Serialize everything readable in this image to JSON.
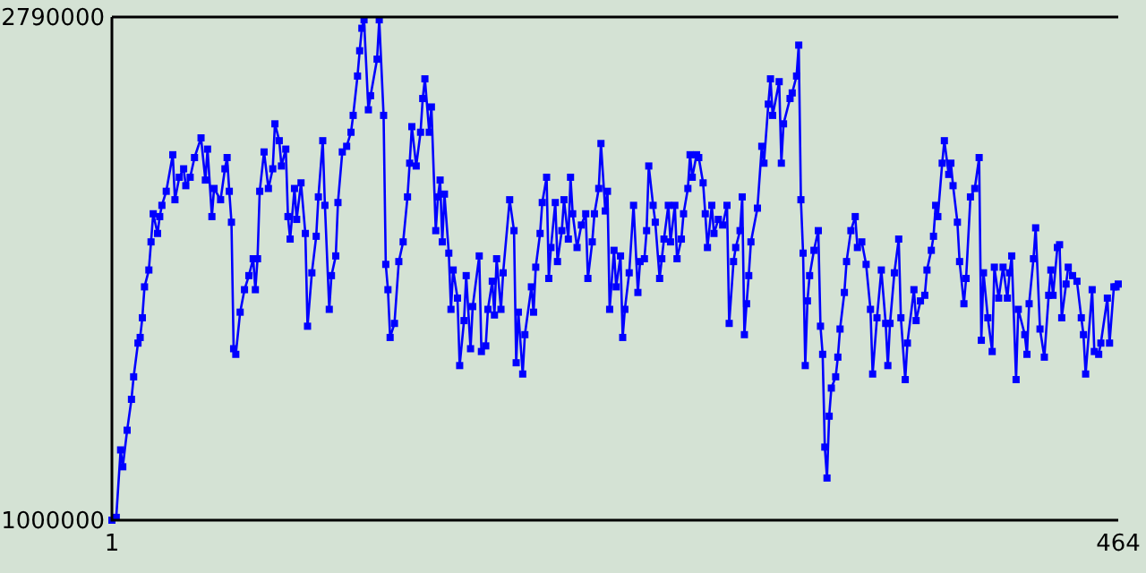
{
  "chart_data": {
    "type": "line",
    "marker": "square",
    "line_style": "solid",
    "xlim": [
      1,
      464
    ],
    "ylim": [
      1000000,
      2790000
    ],
    "xticks": [
      1,
      464
    ],
    "yticks": [
      1000000,
      2790000
    ],
    "x": [
      1,
      3,
      5,
      6,
      8,
      10,
      11,
      13,
      14,
      15,
      16,
      18,
      19,
      20,
      22,
      23,
      24,
      26,
      29,
      30,
      32,
      34,
      35,
      37,
      39,
      42,
      44,
      45,
      47,
      48,
      51,
      53,
      54,
      55,
      56,
      57,
      58,
      60,
      62,
      64,
      66,
      67,
      68,
      69,
      71,
      73,
      75,
      76,
      78,
      79,
      81,
      82,
      83,
      85,
      86,
      88,
      90,
      91,
      93,
      95,
      96,
      98,
      99,
      101,
      102,
      104,
      105,
      107,
      109,
      111,
      112,
      114,
      115,
      116,
      117,
      119,
      120,
      123,
      124,
      126,
      127,
      128,
      129,
      131,
      133,
      135,
      137,
      138,
      139,
      141,
      143,
      144,
      145,
      147,
      148,
      150,
      151,
      152,
      153,
      154,
      156,
      157,
      158,
      160,
      161,
      163,
      164,
      166,
      167,
      170,
      171,
      173,
      174,
      176,
      177,
      178,
      180,
      181,
      184,
      186,
      187,
      188,
      190,
      191,
      194,
      195,
      196,
      198,
      199,
      201,
      202,
      203,
      205,
      206,
      208,
      209,
      211,
      212,
      213,
      215,
      217,
      219,
      220,
      222,
      223,
      225,
      226,
      228,
      229,
      230,
      232,
      233,
      235,
      236,
      237,
      239,
      241,
      243,
      244,
      246,
      247,
      248,
      250,
      251,
      253,
      254,
      255,
      257,
      258,
      260,
      261,
      263,
      264,
      266,
      267,
      268,
      270,
      271,
      273,
      274,
      275,
      277,
      278,
      280,
      282,
      284,
      285,
      287,
      288,
      290,
      291,
      292,
      293,
      294,
      295,
      298,
      300,
      301,
      303,
      304,
      305,
      308,
      309,
      310,
      313,
      314,
      316,
      317,
      318,
      319,
      320,
      321,
      322,
      324,
      326,
      327,
      328,
      329,
      330,
      331,
      332,
      334,
      335,
      336,
      338,
      339,
      341,
      343,
      344,
      346,
      348,
      350,
      351,
      353,
      355,
      357,
      358,
      359,
      361,
      363,
      364,
      366,
      367,
      370,
      371,
      373,
      375,
      376,
      378,
      379,
      380,
      381,
      383,
      384,
      386,
      387,
      388,
      390,
      391,
      393,
      394,
      396,
      398,
      400,
      401,
      402,
      404,
      406,
      407,
      409,
      411,
      413,
      414,
      415,
      417,
      418,
      421,
      422,
      423,
      425,
      426,
      428,
      430,
      432,
      433,
      434,
      436,
      437,
      438,
      440,
      441,
      443,
      445,
      447,
      448,
      449,
      452,
      453,
      455,
      456,
      459,
      460,
      462,
      463,
      464
    ],
    "series": [
      {
        "color": "#0000ff",
        "values": [
          1000000,
          1010000,
          1250000,
          1190000,
          1320000,
          1430000,
          1510000,
          1630000,
          1650000,
          1720000,
          1830000,
          1890000,
          1990000,
          2090000,
          2020000,
          2080000,
          2120000,
          2170000,
          2300000,
          2140000,
          2220000,
          2250000,
          2190000,
          2220000,
          2290000,
          2360000,
          2210000,
          2320000,
          2080000,
          2180000,
          2140000,
          2250000,
          2290000,
          2170000,
          2060000,
          1610000,
          1590000,
          1740000,
          1820000,
          1870000,
          1930000,
          1820000,
          1930000,
          2170000,
          2310000,
          2180000,
          2250000,
          2410000,
          2350000,
          2260000,
          2320000,
          2080000,
          2000000,
          2180000,
          2070000,
          2200000,
          2020000,
          1690000,
          1880000,
          2010000,
          2150000,
          2350000,
          2120000,
          1750000,
          1870000,
          1940000,
          2130000,
          2310000,
          2330000,
          2380000,
          2440000,
          2580000,
          2670000,
          2750000,
          2780000,
          2460000,
          2510000,
          2640000,
          2780000,
          2440000,
          1910000,
          1820000,
          1650000,
          1700000,
          1920000,
          1990000,
          2150000,
          2270000,
          2400000,
          2260000,
          2380000,
          2500000,
          2570000,
          2380000,
          2470000,
          2030000,
          2150000,
          2210000,
          1990000,
          2160000,
          1950000,
          1750000,
          1890000,
          1790000,
          1550000,
          1710000,
          1870000,
          1610000,
          1760000,
          1940000,
          1600000,
          1620000,
          1750000,
          1850000,
          1730000,
          1930000,
          1750000,
          1880000,
          2140000,
          2030000,
          1560000,
          1740000,
          1520000,
          1660000,
          1830000,
          1740000,
          1900000,
          2020000,
          2130000,
          2220000,
          1860000,
          1970000,
          2130000,
          1920000,
          2030000,
          2140000,
          2000000,
          2220000,
          2090000,
          1970000,
          2050000,
          2090000,
          1860000,
          1990000,
          2090000,
          2180000,
          2340000,
          2100000,
          2170000,
          1750000,
          1960000,
          1830000,
          1940000,
          1650000,
          1750000,
          1880000,
          2120000,
          1810000,
          1920000,
          1930000,
          2030000,
          2260000,
          2120000,
          2060000,
          1860000,
          1930000,
          2000000,
          2120000,
          1990000,
          2120000,
          1930000,
          2000000,
          2090000,
          2180000,
          2300000,
          2220000,
          2300000,
          2290000,
          2200000,
          2090000,
          1970000,
          2120000,
          2020000,
          2070000,
          2050000,
          2120000,
          1700000,
          1920000,
          1970000,
          2030000,
          2150000,
          1660000,
          1770000,
          1870000,
          1990000,
          2110000,
          2330000,
          2270000,
          2480000,
          2570000,
          2440000,
          2560000,
          2270000,
          2410000,
          2500000,
          2520000,
          2580000,
          2690000,
          2140000,
          1950000,
          1550000,
          1780000,
          1870000,
          1960000,
          2030000,
          1690000,
          1590000,
          1260000,
          1150000,
          1370000,
          1470000,
          1510000,
          1580000,
          1680000,
          1810000,
          1920000,
          2030000,
          2080000,
          1970000,
          1990000,
          1910000,
          1750000,
          1520000,
          1720000,
          1890000,
          1700000,
          1550000,
          1700000,
          1880000,
          2000000,
          1720000,
          1500000,
          1630000,
          1820000,
          1710000,
          1780000,
          1800000,
          1890000,
          1960000,
          2010000,
          2120000,
          2080000,
          2270000,
          2350000,
          2230000,
          2270000,
          2190000,
          2060000,
          1920000,
          1770000,
          1860000,
          2150000,
          2180000,
          2290000,
          1640000,
          1880000,
          1720000,
          1600000,
          1900000,
          1790000,
          1900000,
          1790000,
          1880000,
          1940000,
          1500000,
          1750000,
          1660000,
          1590000,
          1770000,
          1930000,
          2040000,
          1680000,
          1580000,
          1800000,
          1890000,
          1800000,
          1970000,
          1980000,
          1720000,
          1840000,
          1900000,
          1870000,
          1850000,
          1720000,
          1660000,
          1520000,
          1820000,
          1600000,
          1590000,
          1630000,
          1790000,
          1630000,
          1830000,
          1830000,
          1840000
        ]
      }
    ]
  }
}
